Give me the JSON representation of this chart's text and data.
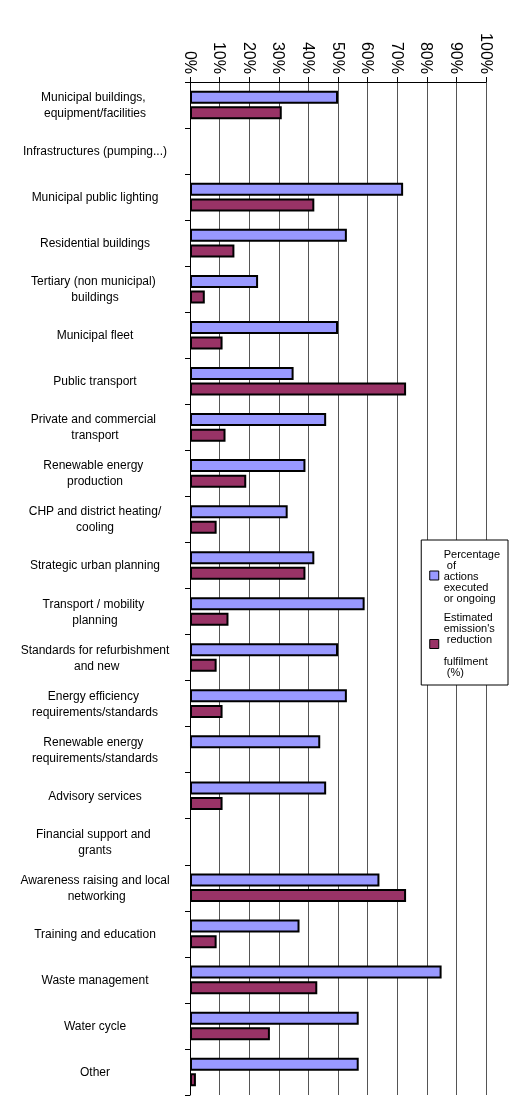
{
  "chart_data": {
    "type": "bar",
    "orientation": "horizontal",
    "categories": [
      "Municipal buildings, equipment/facilities",
      "Infrastructures (pumping...)",
      "Municipal public lighting",
      "Residential buildings",
      "Tertiary (non municipal) buildings",
      "Municipal fleet",
      "Public transport",
      "Private and commercial transport",
      "Renewable energy production",
      "CHP and district heating/cooling",
      "Strategic urban planning",
      "Transport / mobility planning",
      "Standards for refurbishment and new",
      "Energy efficiency requirements/standards",
      "Renewable energy requirements/standards",
      "Advisory services",
      "Financial support and grants",
      "Awareness raising and local networking",
      "Training and education",
      "Waste management",
      "Water cycle",
      "Other"
    ],
    "series": [
      {
        "name": "Percentage of actions executed or ongoing",
        "color": "#9999ff",
        "values": [
          50,
          null,
          72,
          53,
          23,
          50,
          35,
          46,
          39,
          33,
          42,
          59,
          50,
          53,
          44,
          46,
          null,
          64,
          37,
          85,
          57,
          57
        ]
      },
      {
        "name": "Estimated emission's reduction fulfilment (%)",
        "color": "#993366",
        "values": [
          31,
          null,
          42,
          15,
          5,
          11,
          73,
          12,
          19,
          9,
          39,
          13,
          9,
          11,
          null,
          11,
          null,
          73,
          9,
          43,
          27,
          2
        ]
      }
    ],
    "xlim": [
      0,
      100
    ],
    "xticks": [
      {
        "value": 0,
        "label": "0%"
      },
      {
        "value": 10,
        "label": "10%"
      },
      {
        "value": 20,
        "label": "20%"
      },
      {
        "value": 30,
        "label": "30%"
      },
      {
        "value": 40,
        "label": "40%"
      },
      {
        "value": 50,
        "label": "50%"
      },
      {
        "value": 60,
        "label": "60%"
      },
      {
        "value": 70,
        "label": "70%"
      },
      {
        "value": 80,
        "label": "80%"
      },
      {
        "value": 90,
        "label": "90%"
      },
      {
        "value": 100,
        "label": "100%"
      }
    ],
    "grid": "x",
    "legend": "right"
  }
}
